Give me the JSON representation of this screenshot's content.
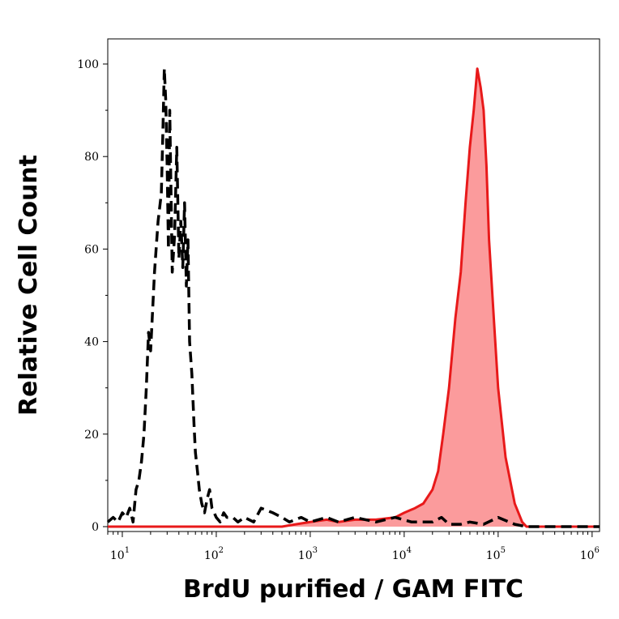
{
  "chart_data": {
    "type": "area",
    "xlabel": "BrdU purified / GAM FITC",
    "ylabel": "Relative Cell Count",
    "x_scale": "log",
    "xlim": [
      7,
      1200000
    ],
    "ylim": [
      0,
      102
    ],
    "y_ticks": [
      0,
      20,
      40,
      60,
      80,
      100
    ],
    "x_ticks": [
      {
        "value": 10,
        "base": "10",
        "exp": "1"
      },
      {
        "value": 100,
        "base": "10",
        "exp": "2"
      },
      {
        "value": 1000,
        "base": "10",
        "exp": "3"
      },
      {
        "value": 10000,
        "base": "10",
        "exp": "4"
      },
      {
        "value": 100000,
        "base": "10",
        "exp": "5"
      },
      {
        "value": 1000000,
        "base": "10",
        "exp": "6"
      }
    ],
    "grid": false,
    "series": [
      {
        "style": "dashed",
        "color": "#000000",
        "fill": "none",
        "x": [
          7,
          8,
          9,
          10,
          11,
          12,
          13,
          14,
          15,
          16,
          17,
          18,
          19,
          20,
          22,
          24,
          26,
          27,
          28,
          29,
          30,
          31,
          32,
          34,
          36,
          38,
          40,
          42,
          44,
          46,
          48,
          50,
          52,
          55,
          58,
          60,
          63,
          66,
          70,
          75,
          80,
          85,
          90,
          95,
          100,
          110,
          120,
          130,
          150,
          170,
          200,
          250,
          300,
          400,
          500,
          600,
          800,
          1000,
          1500,
          2000,
          3000,
          5000,
          8000,
          12000,
          20000,
          25000,
          30000,
          40000,
          50000,
          70000,
          100000,
          150000,
          200000,
          500000,
          1200000
        ],
        "y": [
          1,
          2,
          1,
          3,
          2,
          4,
          1,
          8,
          10,
          14,
          20,
          30,
          42,
          38,
          55,
          66,
          72,
          85,
          99,
          92,
          78,
          60,
          90,
          55,
          63,
          82,
          58,
          66,
          56,
          70,
          52,
          62,
          40,
          33,
          22,
          16,
          12,
          8,
          5,
          3,
          6,
          8,
          4,
          3,
          2,
          1,
          3,
          2,
          2,
          1,
          2,
          1,
          4,
          3,
          2,
          1,
          2,
          1,
          2,
          1,
          2,
          1,
          2,
          1,
          1,
          2,
          0.5,
          0.5,
          1,
          0.5,
          2,
          0.5,
          0,
          0,
          0
        ]
      },
      {
        "style": "solid",
        "color": "#e8191a",
        "fill": "#fb9b9c",
        "x": [
          7,
          100,
          300,
          500,
          700,
          1000,
          1500,
          2000,
          3000,
          5000,
          8000,
          10000,
          13000,
          16000,
          20000,
          23000,
          26000,
          30000,
          35000,
          40000,
          45000,
          50000,
          55000,
          60000,
          65000,
          70000,
          75000,
          80000,
          90000,
          100000,
          120000,
          150000,
          180000,
          200000,
          300000,
          1200000
        ],
        "y": [
          0,
          0,
          0,
          0,
          0.5,
          1,
          1.5,
          1,
          1.5,
          1.5,
          2,
          3,
          4,
          5,
          8,
          12,
          20,
          30,
          45,
          55,
          70,
          82,
          90,
          99,
          95,
          90,
          78,
          62,
          45,
          30,
          15,
          5,
          1,
          0,
          0,
          0
        ]
      }
    ]
  }
}
